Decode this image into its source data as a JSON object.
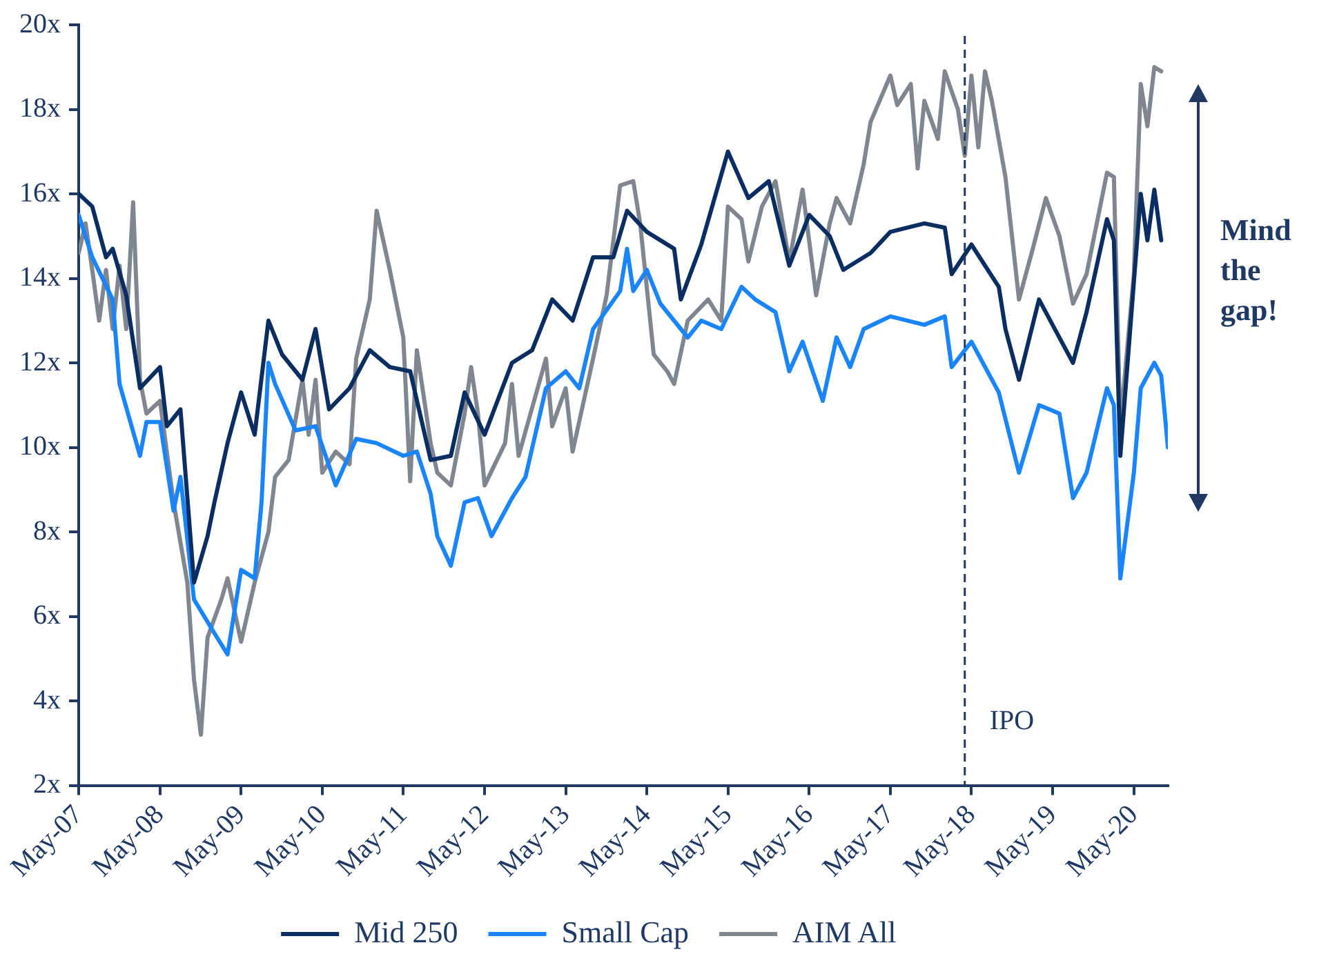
{
  "chart_data": {
    "type": "line",
    "legend": "bottom",
    "marker": "none",
    "line_style": "solid",
    "xlim": [
      "2007-05",
      "2020-10"
    ],
    "xticks": [
      {
        "value": "2007-05",
        "label": "May-07"
      },
      {
        "value": "2008-05",
        "label": "May-08"
      },
      {
        "value": "2009-05",
        "label": "May-09"
      },
      {
        "value": "2010-05",
        "label": "May-10"
      },
      {
        "value": "2011-05",
        "label": "May-11"
      },
      {
        "value": "2012-05",
        "label": "May-12"
      },
      {
        "value": "2013-05",
        "label": "May-13"
      },
      {
        "value": "2014-05",
        "label": "May-14"
      },
      {
        "value": "2015-05",
        "label": "May-15"
      },
      {
        "value": "2016-05",
        "label": "May-16"
      },
      {
        "value": "2017-05",
        "label": "May-17"
      },
      {
        "value": "2018-05",
        "label": "May-18"
      },
      {
        "value": "2019-05",
        "label": "May-19"
      },
      {
        "value": "2020-05",
        "label": "May-20"
      }
    ],
    "ylim": [
      2,
      20
    ],
    "yticks": [
      {
        "value": 2,
        "label": "2x"
      },
      {
        "value": 4,
        "label": "4x"
      },
      {
        "value": 6,
        "label": "6x"
      },
      {
        "value": 8,
        "label": "8x"
      },
      {
        "value": 10,
        "label": "10x"
      },
      {
        "value": 12,
        "label": "12x"
      },
      {
        "value": 14,
        "label": "14x"
      },
      {
        "value": 16,
        "label": "16x"
      },
      {
        "value": 18,
        "label": "18x"
      },
      {
        "value": 20,
        "label": "20x"
      }
    ],
    "ref_lines": [
      {
        "axis": "x",
        "value": "2018-04",
        "label": "IPO",
        "color": "#1f3864",
        "line_style": "dashed"
      }
    ],
    "annotations": [
      "Mind the gap!"
    ],
    "series": [
      {
        "name": "Mid 250",
        "color": "#0b2e62",
        "x": [
          "2007-05",
          "2007-07",
          "2007-09",
          "2007-10",
          "2007-12",
          "2008-02",
          "2008-05",
          "2008-06",
          "2008-08",
          "2008-10",
          "2008-12",
          "2009-01",
          "2009-03",
          "2009-05",
          "2009-07",
          "2009-09",
          "2009-11",
          "2010-02",
          "2010-04",
          "2010-06",
          "2010-09",
          "2010-12",
          "2011-03",
          "2011-06",
          "2011-09",
          "2011-12",
          "2012-02",
          "2012-05",
          "2012-09",
          "2012-12",
          "2013-03",
          "2013-06",
          "2013-09",
          "2013-12",
          "2014-02",
          "2014-05",
          "2014-09",
          "2014-10",
          "2015-01",
          "2015-05",
          "2015-08",
          "2015-11",
          "2016-02",
          "2016-05",
          "2016-08",
          "2016-10",
          "2017-02",
          "2017-05",
          "2017-10",
          "2018-01",
          "2018-02",
          "2018-05",
          "2018-09",
          "2018-10",
          "2018-12",
          "2019-03",
          "2019-05",
          "2019-08",
          "2019-10",
          "2020-01",
          "2020-02",
          "2020-03",
          "2020-06",
          "2020-07",
          "2020-08",
          "2020-09"
        ],
        "values": [
          16.0,
          15.7,
          14.5,
          14.7,
          13.6,
          11.4,
          11.9,
          10.5,
          10.9,
          6.8,
          7.9,
          8.7,
          10.1,
          11.3,
          10.3,
          13.0,
          12.2,
          11.6,
          12.8,
          10.9,
          11.4,
          12.3,
          11.9,
          11.8,
          9.7,
          9.8,
          11.3,
          10.3,
          12.0,
          12.3,
          13.5,
          13.0,
          14.5,
          14.5,
          15.6,
          15.1,
          14.7,
          13.5,
          14.8,
          17.0,
          15.9,
          16.3,
          14.3,
          15.5,
          15.0,
          14.2,
          14.6,
          15.1,
          15.3,
          15.2,
          14.1,
          14.8,
          13.8,
          12.8,
          11.6,
          13.5,
          12.9,
          12.0,
          13.2,
          15.4,
          14.9,
          9.8,
          16.0,
          14.9,
          16.1,
          14.9
        ]
      },
      {
        "name": "Small Cap",
        "color": "#1a84fa",
        "x": [
          "2007-05",
          "2007-07",
          "2007-10",
          "2007-11",
          "2008-02",
          "2008-03",
          "2008-05",
          "2008-07",
          "2008-08",
          "2008-10",
          "2009-01",
          "2009-03",
          "2009-05",
          "2009-07",
          "2009-08",
          "2009-09",
          "2009-10",
          "2010-01",
          "2010-04",
          "2010-07",
          "2010-10",
          "2011-01",
          "2011-05",
          "2011-07",
          "2011-09",
          "2011-10",
          "2011-12",
          "2012-02",
          "2012-04",
          "2012-06",
          "2012-09",
          "2012-11",
          "2013-02",
          "2013-05",
          "2013-07",
          "2013-09",
          "2014-01",
          "2014-02",
          "2014-03",
          "2014-05",
          "2014-07",
          "2014-11",
          "2015-01",
          "2015-04",
          "2015-07",
          "2015-09",
          "2015-12",
          "2016-02",
          "2016-04",
          "2016-07",
          "2016-09",
          "2016-11",
          "2017-01",
          "2017-05",
          "2017-10",
          "2018-01",
          "2018-02",
          "2018-05",
          "2018-09",
          "2018-12",
          "2019-03",
          "2019-06",
          "2019-08",
          "2019-10",
          "2020-01",
          "2020-02",
          "2020-03",
          "2020-05",
          "2020-06",
          "2020-08",
          "2020-09",
          "2020-10"
        ],
        "values": [
          15.5,
          14.5,
          13.5,
          11.5,
          9.8,
          10.6,
          10.6,
          8.5,
          9.3,
          6.4,
          5.6,
          5.1,
          7.1,
          6.9,
          8.7,
          12.0,
          11.5,
          10.4,
          10.5,
          9.1,
          10.2,
          10.1,
          9.8,
          9.9,
          8.9,
          7.9,
          7.2,
          8.7,
          8.8,
          7.9,
          8.8,
          9.3,
          11.4,
          11.8,
          11.4,
          12.8,
          13.7,
          14.7,
          13.7,
          14.2,
          13.4,
          12.6,
          13.0,
          12.8,
          13.8,
          13.5,
          13.2,
          11.8,
          12.5,
          11.1,
          12.6,
          11.9,
          12.8,
          13.1,
          12.9,
          13.1,
          11.9,
          12.5,
          11.3,
          9.4,
          11.0,
          10.8,
          8.8,
          9.4,
          11.4,
          11.0,
          6.9,
          9.4,
          11.4,
          12.0,
          11.7,
          10.0
        ]
      },
      {
        "name": "AIM All",
        "color": "#7f868f",
        "x": [
          "2007-05",
          "2007-06",
          "2007-07",
          "2007-08",
          "2007-09",
          "2007-10",
          "2007-11",
          "2007-12",
          "2008-01",
          "2008-02",
          "2008-03",
          "2008-05",
          "2008-07",
          "2008-09",
          "2008-10",
          "2008-11",
          "2008-12",
          "2009-02",
          "2009-03",
          "2009-05",
          "2009-07",
          "2009-09",
          "2009-10",
          "2009-12",
          "2010-02",
          "2010-03",
          "2010-04",
          "2010-05",
          "2010-07",
          "2010-09",
          "2010-10",
          "2010-12",
          "2011-01",
          "2011-03",
          "2011-05",
          "2011-06",
          "2011-07",
          "2011-09",
          "2011-10",
          "2011-12",
          "2012-02",
          "2012-03",
          "2012-04",
          "2012-05",
          "2012-08",
          "2012-09",
          "2012-10",
          "2013-02",
          "2013-03",
          "2013-05",
          "2013-06",
          "2013-09",
          "2013-11",
          "2014-01",
          "2014-03",
          "2014-04",
          "2014-06",
          "2014-08",
          "2014-09",
          "2014-11",
          "2015-02",
          "2015-04",
          "2015-05",
          "2015-07",
          "2015-08",
          "2015-10",
          "2015-12",
          "2016-02",
          "2016-04",
          "2016-06",
          "2016-08",
          "2016-09",
          "2016-11",
          "2017-01",
          "2017-02",
          "2017-05",
          "2017-06",
          "2017-08",
          "2017-09",
          "2017-10",
          "2017-12",
          "2018-01",
          "2018-03",
          "2018-04",
          "2018-05",
          "2018-06",
          "2018-07",
          "2018-08",
          "2018-10",
          "2018-12",
          "2019-02",
          "2019-04",
          "2019-06",
          "2019-08",
          "2019-10",
          "2020-01",
          "2020-02",
          "2020-03",
          "2020-05",
          "2020-06",
          "2020-07",
          "2020-08",
          "2020-09"
        ],
        "values": [
          14.6,
          15.3,
          14.2,
          13.0,
          14.2,
          12.8,
          14.3,
          12.8,
          15.8,
          11.6,
          10.8,
          11.1,
          8.7,
          6.8,
          4.5,
          3.2,
          5.5,
          6.4,
          6.9,
          5.4,
          6.8,
          8.0,
          9.3,
          9.7,
          11.6,
          10.3,
          11.6,
          9.4,
          9.9,
          9.6,
          12.1,
          13.5,
          15.6,
          14.2,
          12.6,
          9.2,
          12.3,
          10.1,
          9.4,
          9.1,
          10.8,
          11.9,
          10.8,
          9.1,
          10.1,
          11.5,
          9.8,
          12.1,
          10.5,
          11.4,
          9.9,
          12.1,
          13.6,
          16.2,
          16.3,
          15.3,
          12.2,
          11.8,
          11.5,
          13.0,
          13.5,
          13.0,
          15.7,
          15.4,
          14.4,
          15.7,
          16.3,
          14.4,
          16.1,
          13.6,
          15.3,
          15.9,
          15.3,
          16.7,
          17.7,
          18.8,
          18.1,
          18.6,
          16.6,
          18.2,
          17.3,
          18.9,
          18.0,
          16.9,
          18.8,
          17.1,
          18.9,
          18.2,
          16.4,
          13.5,
          14.7,
          15.9,
          15.0,
          13.4,
          14.1,
          16.5,
          16.4,
          10.5,
          14.1,
          18.6,
          17.6,
          19.0,
          18.9
        ]
      }
    ]
  }
}
